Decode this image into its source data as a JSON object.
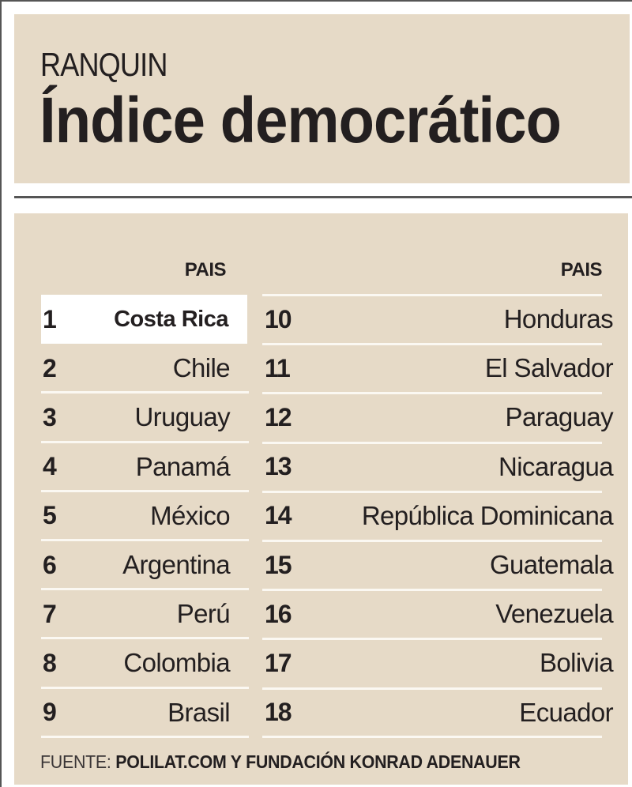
{
  "header": {
    "kicker": "RANQUIN",
    "title": "Índice democrático"
  },
  "colors": {
    "panel_background": "#e6dac7",
    "text": "#231f20",
    "highlight_row": "#ffffff",
    "row_separator": "#fbf8f2"
  },
  "table": {
    "left_column_header": "PAIS",
    "right_column_header": "PAIS",
    "left_rows": [
      {
        "rank": "1",
        "country": "Costa Rica",
        "highlighted": true
      },
      {
        "rank": "2",
        "country": "Chile"
      },
      {
        "rank": "3",
        "country": "Uruguay"
      },
      {
        "rank": "4",
        "country": "Panamá"
      },
      {
        "rank": "5",
        "country": "México"
      },
      {
        "rank": "6",
        "country": "Argentina"
      },
      {
        "rank": "7",
        "country": "Perú"
      },
      {
        "rank": "8",
        "country": "Colombia"
      },
      {
        "rank": "9",
        "country": "Brasil"
      }
    ],
    "right_rows": [
      {
        "rank": "10",
        "country": "Honduras"
      },
      {
        "rank": "11",
        "country": "El Salvador"
      },
      {
        "rank": "12",
        "country": "Paraguay"
      },
      {
        "rank": "13",
        "country": "Nicaragua"
      },
      {
        "rank": "14",
        "country": "República Dominicana"
      },
      {
        "rank": "15",
        "country": "Guatemala"
      },
      {
        "rank": "16",
        "country": "Venezuela"
      },
      {
        "rank": "17",
        "country": "Bolivia"
      },
      {
        "rank": "18",
        "country": "Ecuador"
      }
    ]
  },
  "footer": {
    "label": "FUENTE:",
    "source": "POLILAT.COM Y  FUNDACIÓN KONRAD ADENAUER"
  }
}
